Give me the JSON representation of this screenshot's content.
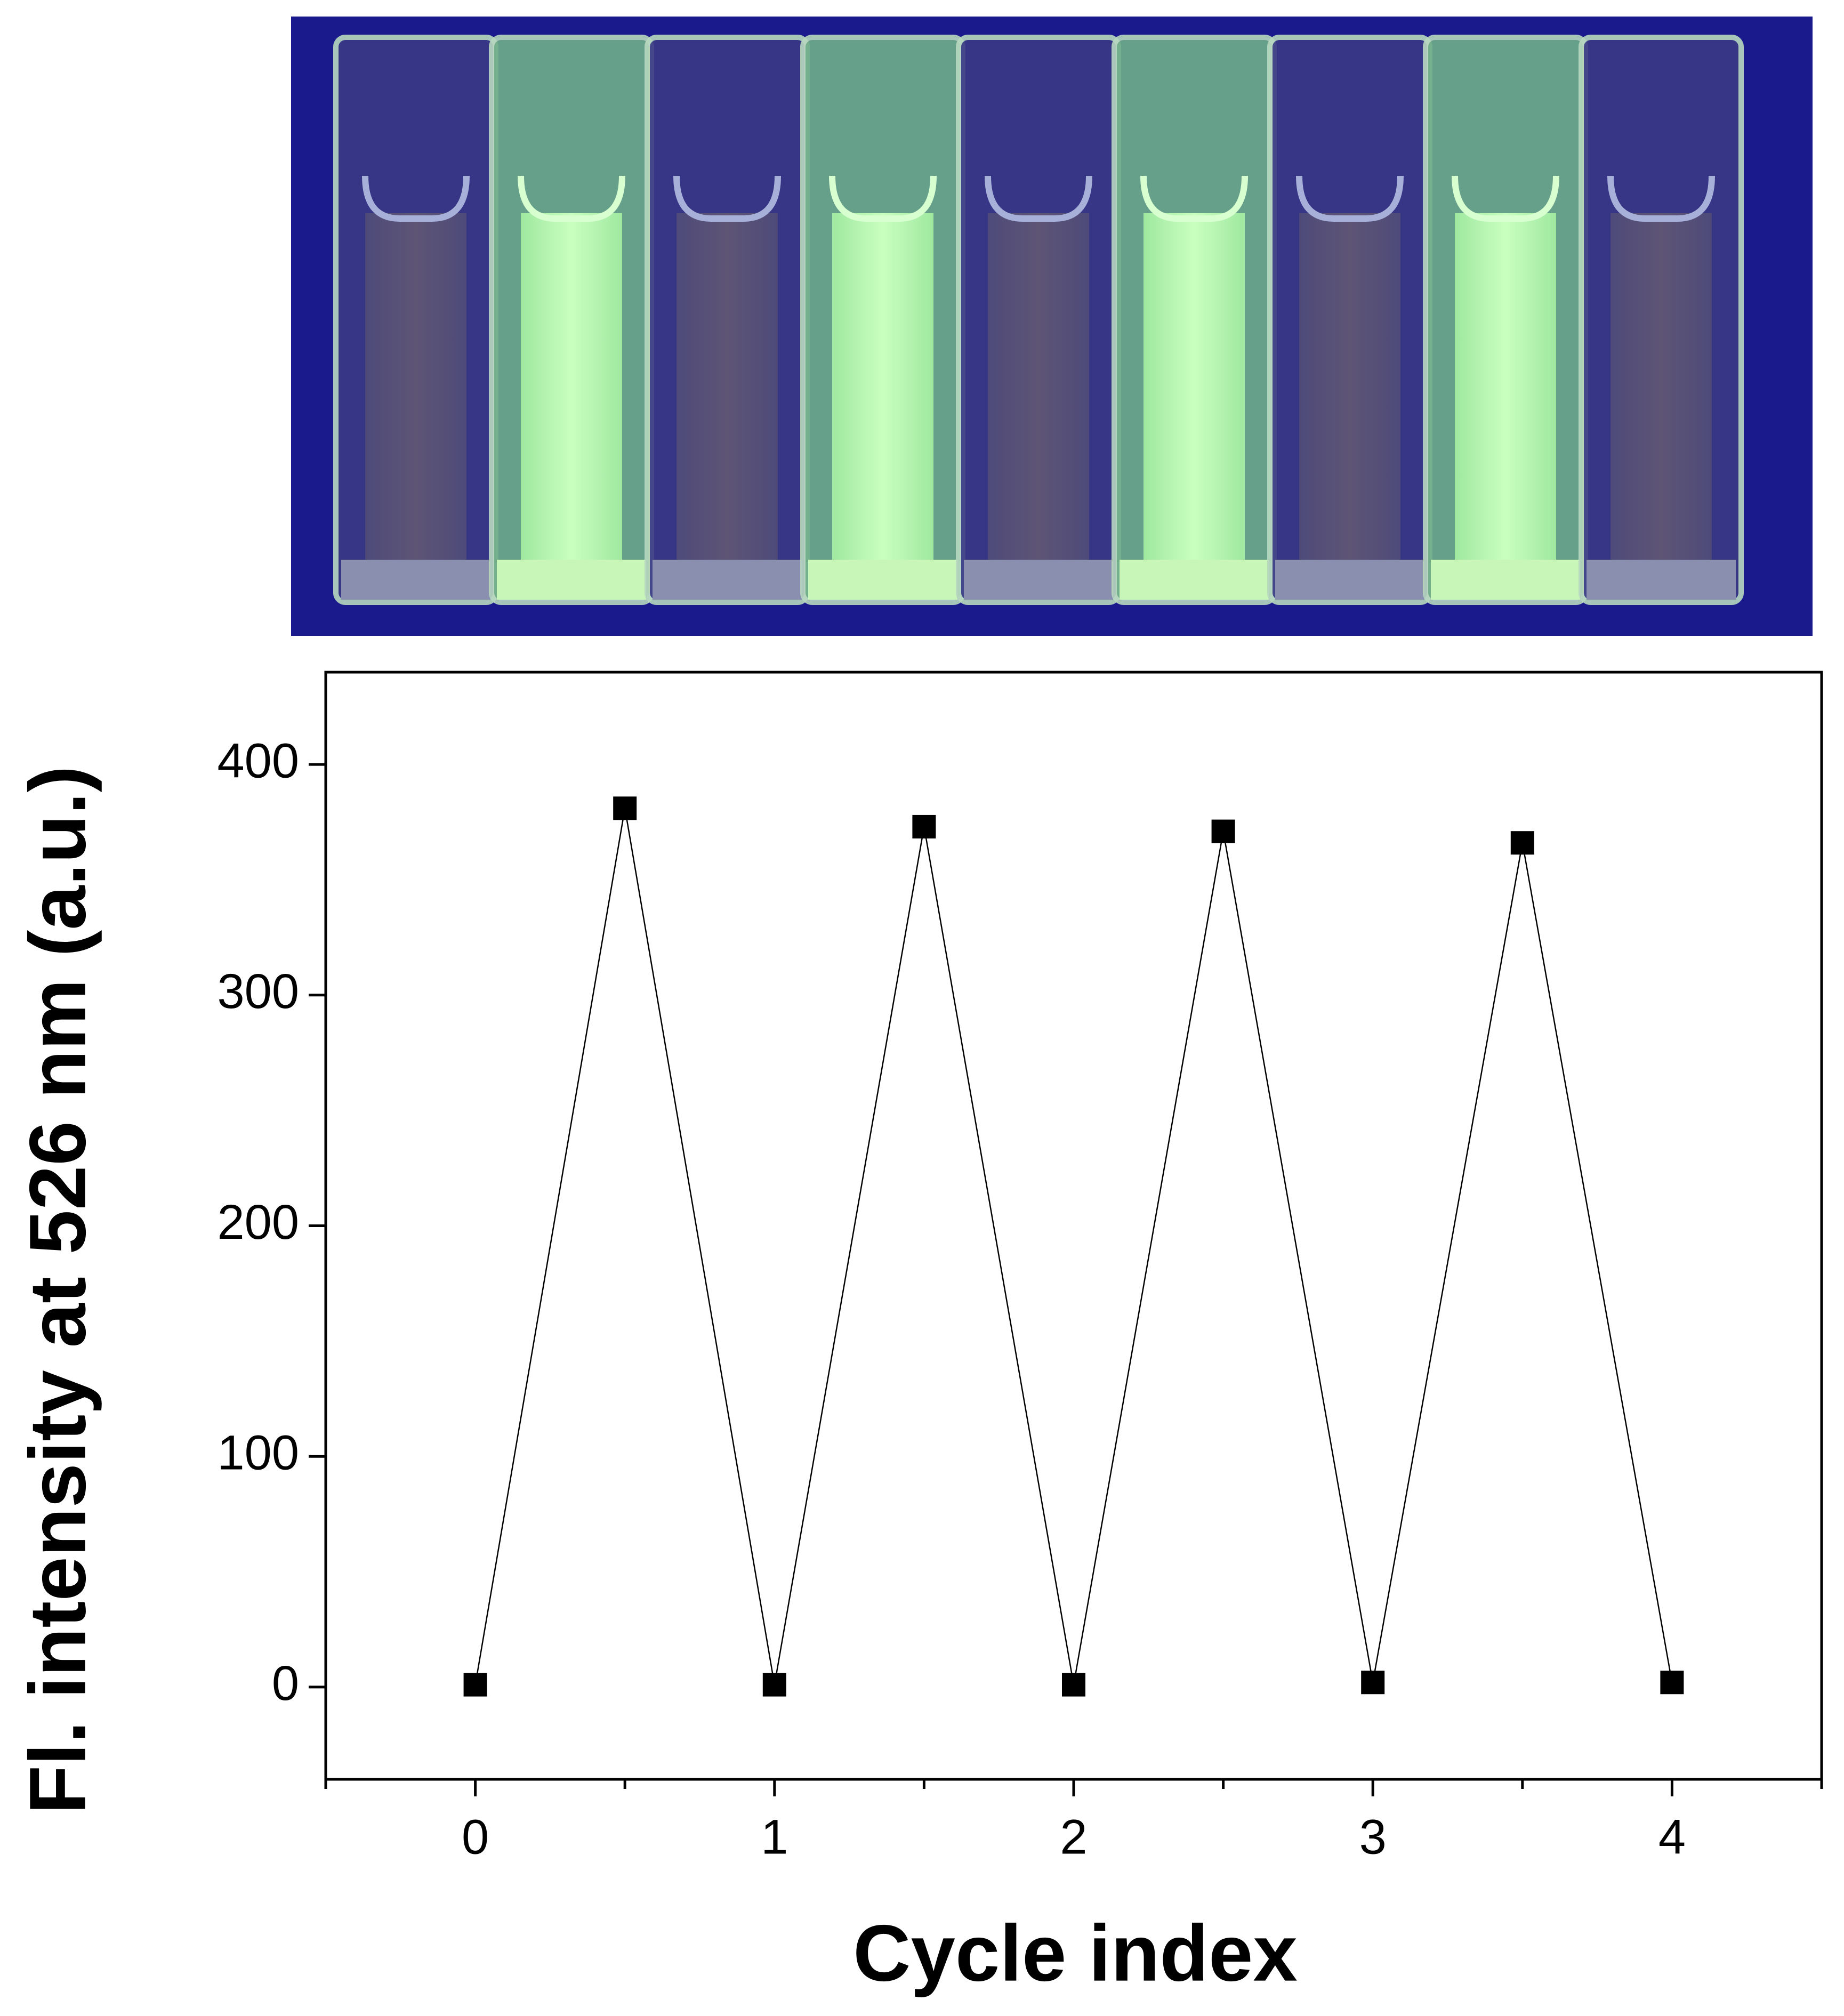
{
  "chart_data": {
    "type": "line",
    "x_label": "Cycle index",
    "y_label": "Fl. intensity at 526 nm (a.u.)",
    "x": [
      0,
      0.5,
      1,
      1.5,
      2,
      2.5,
      3,
      3.5,
      4
    ],
    "series": [
      {
        "color": "#000000",
        "values": [
          1,
          381,
          1,
          373,
          1,
          371,
          2,
          366,
          2
        ]
      }
    ],
    "xlim": [
      -0.5,
      4.5
    ],
    "xticks": [
      0,
      1,
      2,
      3,
      4
    ],
    "xminorticks": [
      -0.5,
      0.5,
      1.5,
      2.5,
      3.5,
      4.5
    ],
    "ylim": [
      -40,
      440
    ],
    "yticks": [
      0,
      100,
      200,
      300,
      400
    ],
    "grid": false
  }
}
